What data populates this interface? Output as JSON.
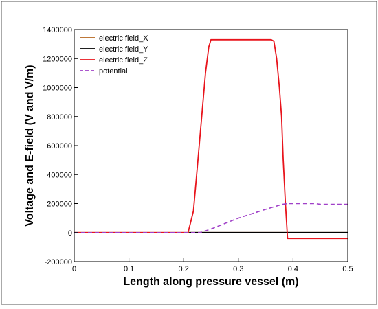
{
  "chart_data": {
    "type": "line",
    "xlabel": "Length along pressure vessel (m)",
    "ylabel": "Voltage and E-field (V and V/m)",
    "xlim": [
      0,
      0.5
    ],
    "ylim": [
      -200000,
      1400000
    ],
    "x_ticks": [
      "0",
      "0.1",
      "0.2",
      "0.3",
      "0.4",
      "0.5"
    ],
    "y_ticks": [
      "-200000",
      "0",
      "200000",
      "400000",
      "600000",
      "800000",
      "1000000",
      "1200000",
      "1400000"
    ],
    "x_tick_values": [
      0,
      0.1,
      0.2,
      0.3,
      0.4,
      0.5
    ],
    "y_tick_values": [
      -200000,
      0,
      200000,
      400000,
      600000,
      800000,
      1000000,
      1200000,
      1400000
    ],
    "grid": false,
    "legend_position": "top-left",
    "series": [
      {
        "name": "electric field_X",
        "color": "#b5651d",
        "dash": "solid",
        "points": [
          [
            0,
            0
          ],
          [
            0.5,
            0
          ]
        ]
      },
      {
        "name": "electric field_Y",
        "color": "#000000",
        "dash": "solid",
        "points": [
          [
            0.21,
            0
          ],
          [
            0.5,
            0
          ]
        ]
      },
      {
        "name": "electric field_Z",
        "color": "#e8141c",
        "dash": "solid",
        "points": [
          [
            0,
            0
          ],
          [
            0.208,
            0
          ],
          [
            0.212,
            60000
          ],
          [
            0.218,
            150000
          ],
          [
            0.225,
            450000
          ],
          [
            0.233,
            800000
          ],
          [
            0.24,
            1100000
          ],
          [
            0.246,
            1280000
          ],
          [
            0.25,
            1330000
          ],
          [
            0.36,
            1330000
          ],
          [
            0.365,
            1320000
          ],
          [
            0.37,
            1200000
          ],
          [
            0.375,
            1000000
          ],
          [
            0.379,
            800000
          ],
          [
            0.382,
            500000
          ],
          [
            0.386,
            200000
          ],
          [
            0.39,
            -40000
          ],
          [
            0.5,
            -40000
          ]
        ]
      },
      {
        "name": "potential",
        "color": "#a040c8",
        "dash": "dashed",
        "points": [
          [
            0,
            0
          ],
          [
            0.23,
            0
          ],
          [
            0.25,
            25000
          ],
          [
            0.3,
            100000
          ],
          [
            0.35,
            160000
          ],
          [
            0.38,
            195000
          ],
          [
            0.39,
            200000
          ],
          [
            0.42,
            200000
          ],
          [
            0.44,
            200000
          ],
          [
            0.45,
            195000
          ],
          [
            0.5,
            195000
          ]
        ]
      }
    ]
  }
}
